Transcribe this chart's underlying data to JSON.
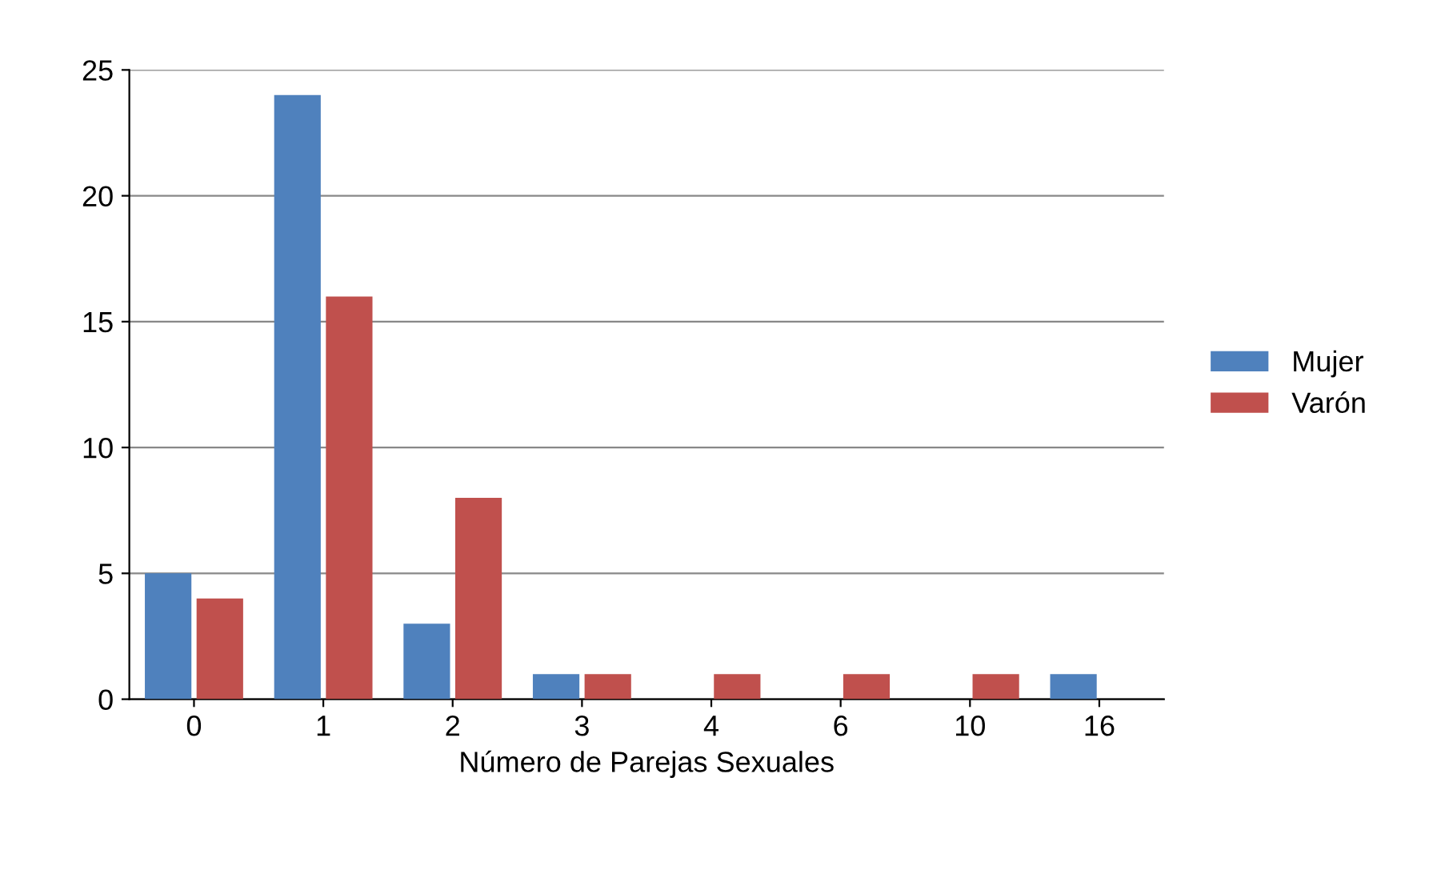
{
  "chart_data": {
    "type": "bar",
    "xlabel": "Número de Parejas Sexuales",
    "categories": [
      "0",
      "1",
      "2",
      "3",
      "4",
      "6",
      "10",
      "16"
    ],
    "series": [
      {
        "name": "Mujer",
        "color": "#4f81bd",
        "values": [
          5,
          24,
          3,
          1,
          0,
          0,
          0,
          1
        ]
      },
      {
        "name": "Varón",
        "color": "#c0504d",
        "values": [
          4,
          16,
          8,
          1,
          1,
          1,
          1,
          0
        ]
      }
    ],
    "ylim": [
      0,
      25
    ],
    "yticks": [
      0,
      5,
      10,
      15,
      20,
      25
    ],
    "grid": "y",
    "legend": "right"
  }
}
